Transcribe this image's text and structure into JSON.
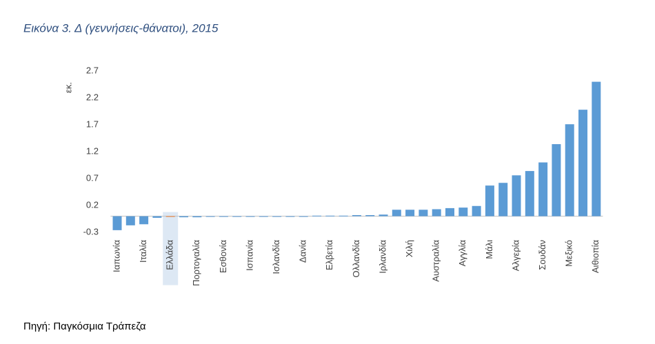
{
  "chart_data": {
    "type": "bar",
    "title": "Εικόνα 3. Δ (γεννήσεις-θάνατοι), 2015",
    "y_label": "εκ.",
    "source": "Πηγή: Παγκόσμια Τράπεζα",
    "categories": [
      "Ιαπωνία",
      null,
      "Ιταλία",
      null,
      "Ελλάδα",
      null,
      "Πορτογαλία",
      null,
      "Εσθονία",
      null,
      "Ισπανία",
      null,
      "Ισλανδία",
      null,
      "Δανία",
      null,
      "Ελβετία",
      null,
      "Ολλανδία",
      null,
      "Ιρλανδία",
      null,
      "Χιλή",
      null,
      "Αυστραλία",
      null,
      "Αγγλία",
      null,
      "Μάλι",
      null,
      "Αλγερία",
      null,
      "Σουδάν",
      null,
      "Μεξικό",
      null,
      "Αιθιοπία"
    ],
    "values": [
      -0.26,
      -0.17,
      -0.15,
      -0.03,
      -0.01,
      -0.02,
      -0.02,
      -0.01,
      0,
      0,
      0,
      0,
      0,
      0,
      0,
      0.01,
      0.01,
      0.01,
      0.02,
      0.02,
      0.03,
      0.12,
      0.12,
      0.12,
      0.13,
      0.15,
      0.16,
      0.19,
      0.57,
      0.62,
      0.76,
      0.84,
      1.0,
      1.34,
      1.71,
      1.98,
      2.5
    ],
    "color": "#5b9bd5",
    "colors": [
      "#5b9bd5",
      "#5b9bd5",
      "#5b9bd5",
      "#5b9bd5",
      "#ed7d31",
      "#5b9bd5",
      "#5b9bd5",
      "#5b9bd5",
      "#5b9bd5",
      "#5b9bd5",
      "#5b9bd5",
      "#5b9bd5",
      "#5b9bd5",
      "#5b9bd5",
      "#5b9bd5",
      "#5b9bd5",
      "#5b9bd5",
      "#5b9bd5",
      "#5b9bd5",
      "#5b9bd5",
      "#5b9bd5",
      "#5b9bd5",
      "#5b9bd5",
      "#5b9bd5",
      "#5b9bd5",
      "#5b9bd5",
      "#5b9bd5",
      "#5b9bd5",
      "#5b9bd5",
      "#5b9bd5",
      "#5b9bd5",
      "#5b9bd5",
      "#5b9bd5",
      "#5b9bd5",
      "#5b9bd5",
      "#5b9bd5",
      "#5b9bd5"
    ],
    "ylim": [
      -0.3,
      2.7
    ],
    "yticks": [
      -0.3,
      0.2,
      0.7,
      1.2,
      1.7,
      2.2,
      2.7
    ],
    "grid": false
  }
}
